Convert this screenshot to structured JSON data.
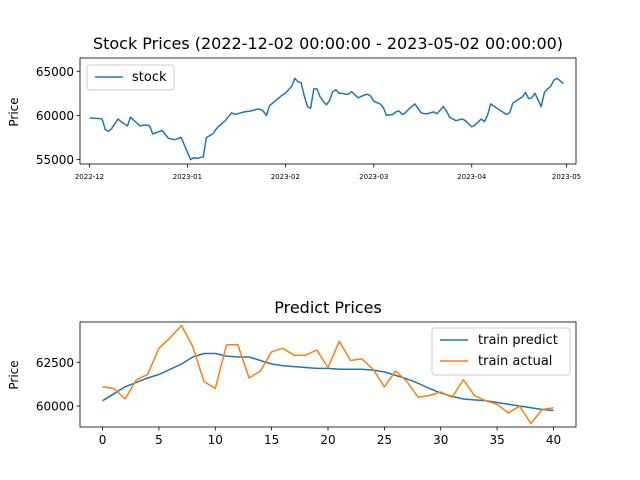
{
  "chart_data": [
    {
      "type": "line",
      "title": "Stock Prices (2022-12-02 00:00:00 - 2023-05-02 00:00:00)",
      "xlabel": "",
      "ylabel": "Price",
      "xlim": [
        "2022-11-28",
        "2023-05-04"
      ],
      "ylim": [
        54500,
        66500
      ],
      "yticks": [
        55000,
        60000,
        65000
      ],
      "ytick_labels": [
        "55000",
        "60000",
        "65000"
      ],
      "xticks": [
        "2022-12-01",
        "2023-01-01",
        "2023-02-01",
        "2023-03-01",
        "2023-04-01",
        "2023-05-01"
      ],
      "xtick_labels": [
        "2022-12",
        "2023-01",
        "2023-02",
        "2023-03",
        "2023-04",
        "2023-05"
      ],
      "legend": {
        "position": "upper left",
        "entries": [
          "stock"
        ]
      },
      "series": [
        {
          "name": "stock",
          "color": "#1f77b4",
          "x": [
            "2022-12-01",
            "2022-12-04",
            "2022-12-05",
            "2022-12-06",
            "2022-12-07",
            "2022-12-08",
            "2022-12-10",
            "2022-12-11",
            "2022-12-12",
            "2022-12-13",
            "2022-12-14",
            "2022-12-17",
            "2022-12-18",
            "2022-12-19",
            "2022-12-20",
            "2022-12-21",
            "2022-12-24",
            "2022-12-26",
            "2022-12-28",
            "2022-12-30",
            "2023-01-02",
            "2023-01-03",
            "2023-01-04",
            "2023-01-06",
            "2023-01-07",
            "2023-01-09",
            "2023-01-10",
            "2023-01-11",
            "2023-01-13",
            "2023-01-15",
            "2023-01-16",
            "2023-01-17",
            "2023-01-19",
            "2023-01-21",
            "2023-01-22",
            "2023-01-23",
            "2023-01-24",
            "2023-01-25",
            "2023-01-26",
            "2023-01-27",
            "2023-01-28",
            "2023-01-29",
            "2023-01-31",
            "2023-02-01",
            "2023-02-02",
            "2023-02-03",
            "2023-02-04",
            "2023-02-05",
            "2023-02-06",
            "2023-02-07",
            "2023-02-08",
            "2023-02-09",
            "2023-02-10",
            "2023-02-11",
            "2023-02-12",
            "2023-02-13",
            "2023-02-14",
            "2023-02-15",
            "2023-02-16",
            "2023-02-17",
            "2023-02-18",
            "2023-02-19",
            "2023-02-20",
            "2023-02-21",
            "2023-02-22",
            "2023-02-24",
            "2023-02-26",
            "2023-02-27",
            "2023-02-28",
            "2023-03-01",
            "2023-03-03",
            "2023-03-04",
            "2023-03-05",
            "2023-03-07",
            "2023-03-08",
            "2023-03-09",
            "2023-03-10",
            "2023-03-11",
            "2023-03-12",
            "2023-03-14",
            "2023-03-15",
            "2023-03-16",
            "2023-03-17",
            "2023-03-18",
            "2023-03-20",
            "2023-03-21",
            "2023-03-22",
            "2023-03-23",
            "2023-03-24",
            "2023-03-25",
            "2023-03-26",
            "2023-03-27",
            "2023-03-28",
            "2023-03-29",
            "2023-03-30",
            "2023-04-01",
            "2023-04-02",
            "2023-04-04",
            "2023-04-05",
            "2023-04-06",
            "2023-04-07",
            "2023-04-09",
            "2023-04-12",
            "2023-04-13",
            "2023-04-14",
            "2023-04-17",
            "2023-04-18",
            "2023-04-19",
            "2023-04-20",
            "2023-04-21",
            "2023-04-23",
            "2023-04-24",
            "2023-04-25",
            "2023-04-26",
            "2023-04-27",
            "2023-04-28",
            "2023-04-30"
          ],
          "y": [
            59700,
            59650,
            59600,
            58400,
            58200,
            58500,
            59600,
            59300,
            59050,
            58800,
            59800,
            58800,
            58900,
            58900,
            58850,
            57900,
            58300,
            57400,
            57250,
            57500,
            55000,
            55200,
            55150,
            55300,
            57500,
            57900,
            58400,
            58800,
            59400,
            60300,
            60100,
            60200,
            60400,
            60500,
            60600,
            60700,
            60700,
            60500,
            60000,
            61100,
            61400,
            61700,
            62300,
            62500,
            62900,
            63300,
            64200,
            63800,
            63700,
            62200,
            61000,
            60800,
            63000,
            63000,
            62100,
            61600,
            61200,
            61700,
            62700,
            62900,
            62500,
            62500,
            62400,
            62400,
            62700,
            62000,
            62300,
            62400,
            62200,
            61600,
            61300,
            60900,
            60000,
            60100,
            60400,
            60500,
            60100,
            60300,
            60700,
            61300,
            60800,
            60300,
            60200,
            60200,
            60400,
            60200,
            60600,
            61000,
            60500,
            59800,
            59600,
            59400,
            59500,
            59600,
            59400,
            58700,
            58900,
            59600,
            59300,
            60000,
            61300,
            60800,
            60100,
            60300,
            61400,
            62100,
            62600,
            61900,
            62000,
            62500,
            61000,
            62600,
            63000,
            63300,
            64000,
            64200,
            63600
          ]
        }
      ]
    },
    {
      "type": "line",
      "title": "Predict Prices",
      "xlabel": "",
      "ylabel": "Price",
      "xlim": [
        -2,
        42
      ],
      "ylim": [
        58800,
        64800
      ],
      "yticks": [
        60000,
        62500
      ],
      "ytick_labels": [
        "60000",
        "62500"
      ],
      "xticks": [
        0,
        5,
        10,
        15,
        20,
        25,
        30,
        35,
        40
      ],
      "xtick_labels": [
        "0",
        "5",
        "10",
        "15",
        "20",
        "25",
        "30",
        "35",
        "40"
      ],
      "legend": {
        "position": "upper right",
        "entries": [
          "train predict",
          "train actual"
        ]
      },
      "series": [
        {
          "name": "train predict",
          "color": "#1f77b4",
          "x": [
            0,
            1,
            2,
            3,
            4,
            5,
            6,
            7,
            8,
            9,
            10,
            11,
            12,
            13,
            14,
            15,
            16,
            17,
            18,
            19,
            20,
            21,
            22,
            23,
            24,
            25,
            26,
            27,
            28,
            29,
            30,
            31,
            32,
            33,
            34,
            35,
            36,
            37,
            38,
            39,
            40
          ],
          "y": [
            60300,
            60700,
            61100,
            61350,
            61600,
            61800,
            62100,
            62400,
            62800,
            63000,
            63000,
            62850,
            62800,
            62800,
            62600,
            62400,
            62300,
            62250,
            62200,
            62150,
            62150,
            62100,
            62100,
            62100,
            62050,
            61950,
            61750,
            61550,
            61300,
            61000,
            60750,
            60550,
            60400,
            60350,
            60300,
            60200,
            60100,
            60000,
            59900,
            59800,
            59750
          ]
        },
        {
          "name": "train actual",
          "color": "#ff7f0e",
          "x": [
            0,
            1,
            2,
            3,
            4,
            5,
            6,
            7,
            8,
            9,
            10,
            11,
            12,
            13,
            14,
            15,
            16,
            17,
            18,
            19,
            20,
            21,
            22,
            23,
            24,
            25,
            26,
            27,
            28,
            29,
            30,
            31,
            32,
            33,
            34,
            35,
            36,
            37,
            38,
            39,
            40
          ],
          "y": [
            61100,
            61000,
            60400,
            61500,
            61800,
            63300,
            63900,
            64600,
            63400,
            61400,
            61000,
            63500,
            63500,
            61600,
            62000,
            63100,
            63300,
            62900,
            62900,
            63200,
            62200,
            63700,
            62600,
            62700,
            62100,
            61100,
            62000,
            61400,
            60500,
            60600,
            60800,
            60500,
            61500,
            60600,
            60300,
            60100,
            59600,
            60000,
            59000,
            59800,
            59900
          ]
        }
      ]
    }
  ]
}
